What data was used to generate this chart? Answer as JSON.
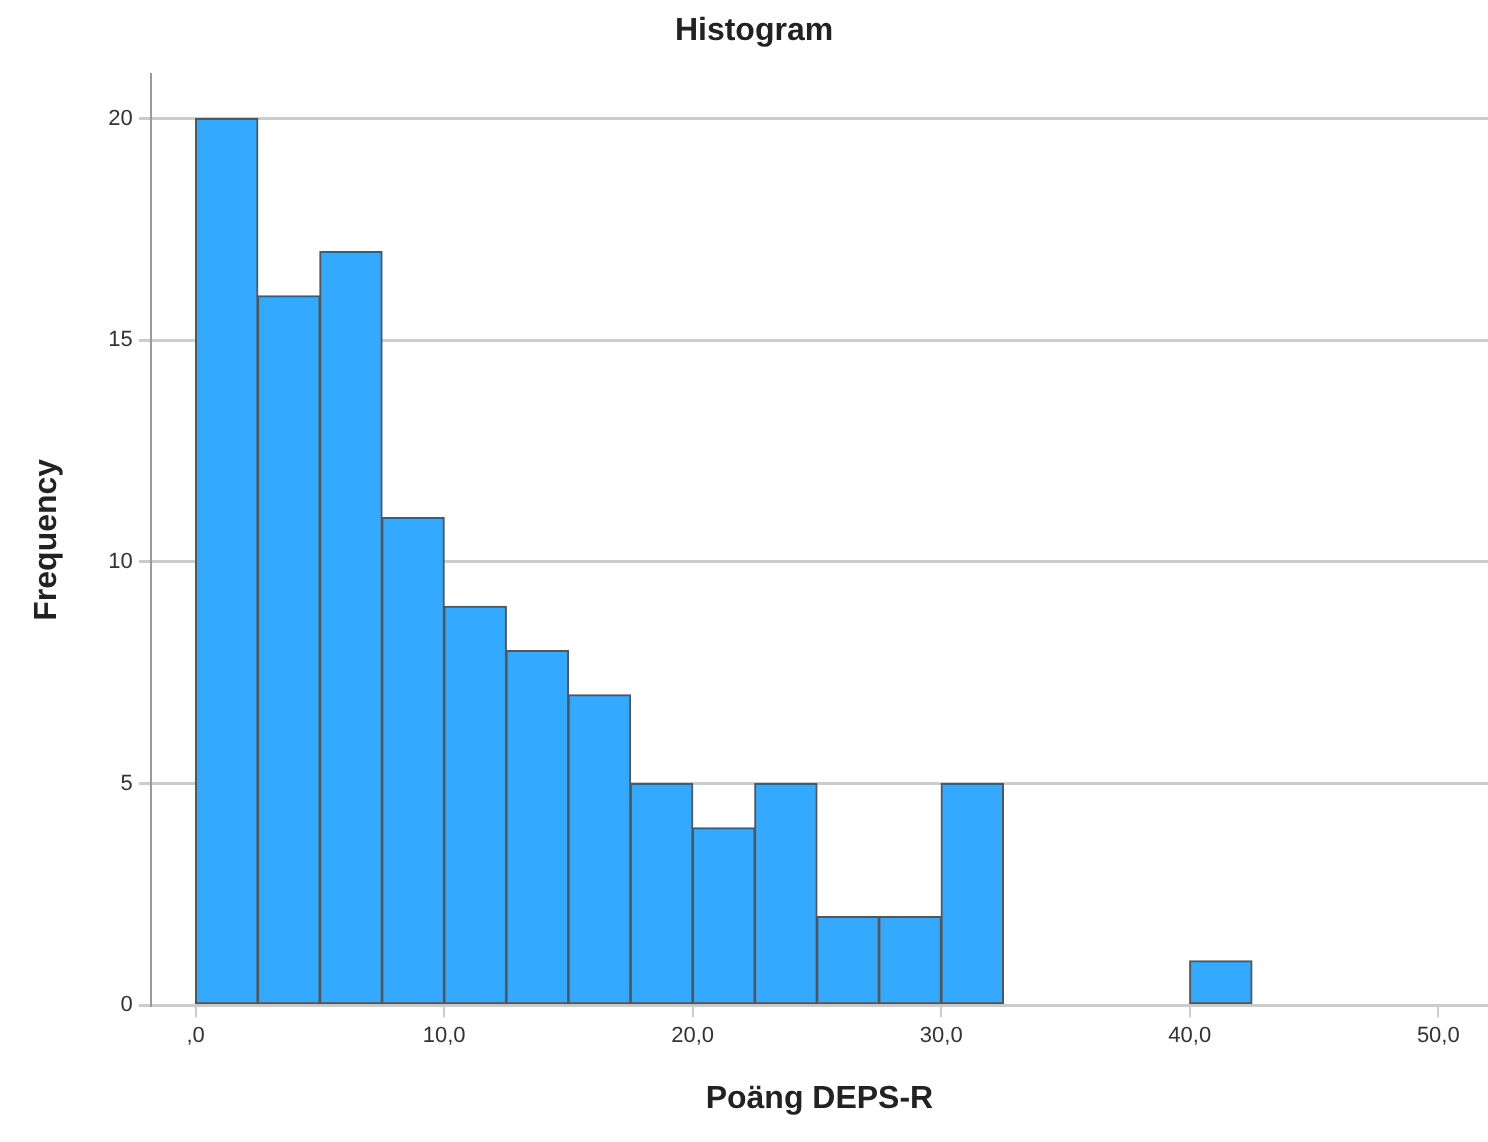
{
  "chart_data": {
    "type": "histogram",
    "title": "Histogram",
    "xlabel": "Poäng DEPS-R",
    "ylabel": "Frequency",
    "bins": [
      0,
      2.5,
      5,
      7.5,
      10,
      12.5,
      15,
      17.5,
      20,
      22.5,
      25,
      27.5,
      30,
      32.5,
      35,
      37.5,
      40,
      42.5
    ],
    "values": [
      20,
      16,
      17,
      11,
      9,
      8,
      7,
      5,
      4,
      5,
      2,
      2,
      5,
      0,
      0,
      0,
      1
    ],
    "color": "#33aaff",
    "xlim": [
      -1.8,
      52
    ],
    "xticks": [
      {
        "value": 0,
        "label": ",0"
      },
      {
        "value": 10,
        "label": "10,0"
      },
      {
        "value": 20,
        "label": "20,0"
      },
      {
        "value": 30,
        "label": "30,0"
      },
      {
        "value": 40,
        "label": "40,0"
      },
      {
        "value": 50,
        "label": "50,0"
      }
    ],
    "ylim": [
      0,
      21
    ],
    "yticks": [
      0,
      5,
      10,
      15,
      20
    ],
    "grid": "y"
  }
}
